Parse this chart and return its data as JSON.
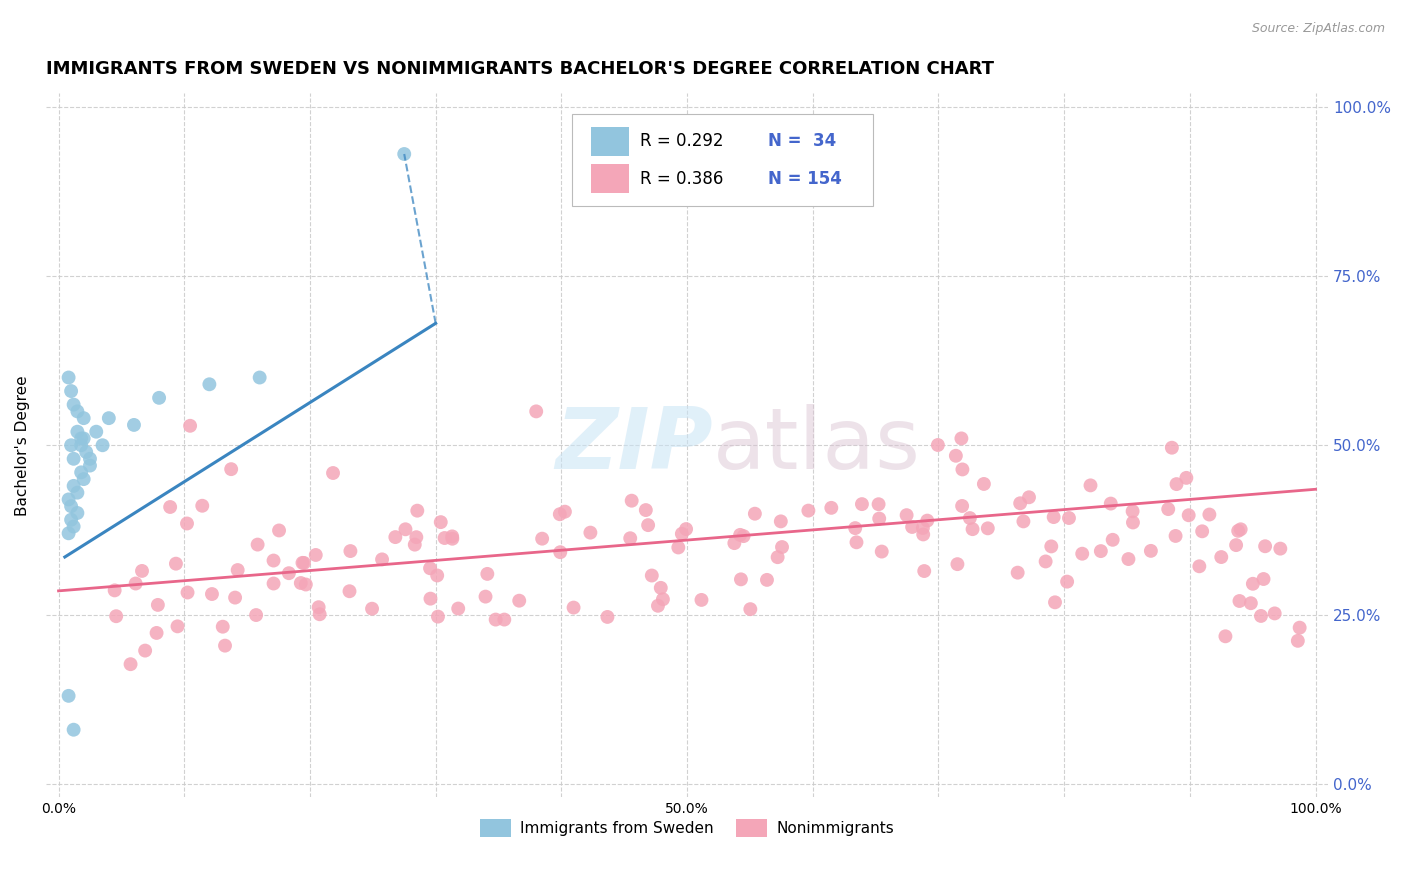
{
  "title": "IMMIGRANTS FROM SWEDEN VS NONIMMIGRANTS BACHELOR'S DEGREE CORRELATION CHART",
  "source": "Source: ZipAtlas.com",
  "ylabel": "Bachelor's Degree",
  "legend_entries": [
    "Immigrants from Sweden",
    "Nonimmigrants"
  ],
  "R_blue": 0.292,
  "N_blue": 34,
  "R_pink": 0.386,
  "N_pink": 154,
  "blue_color": "#92c5de",
  "pink_color": "#f4a6b8",
  "blue_line_color": "#3a85c0",
  "pink_line_color": "#e8668a",
  "background_color": "#ffffff",
  "grid_color": "#cccccc",
  "right_tick_color": "#4466cc",
  "title_fontsize": 13,
  "source_fontsize": 9,
  "axis_label_fontsize": 11
}
